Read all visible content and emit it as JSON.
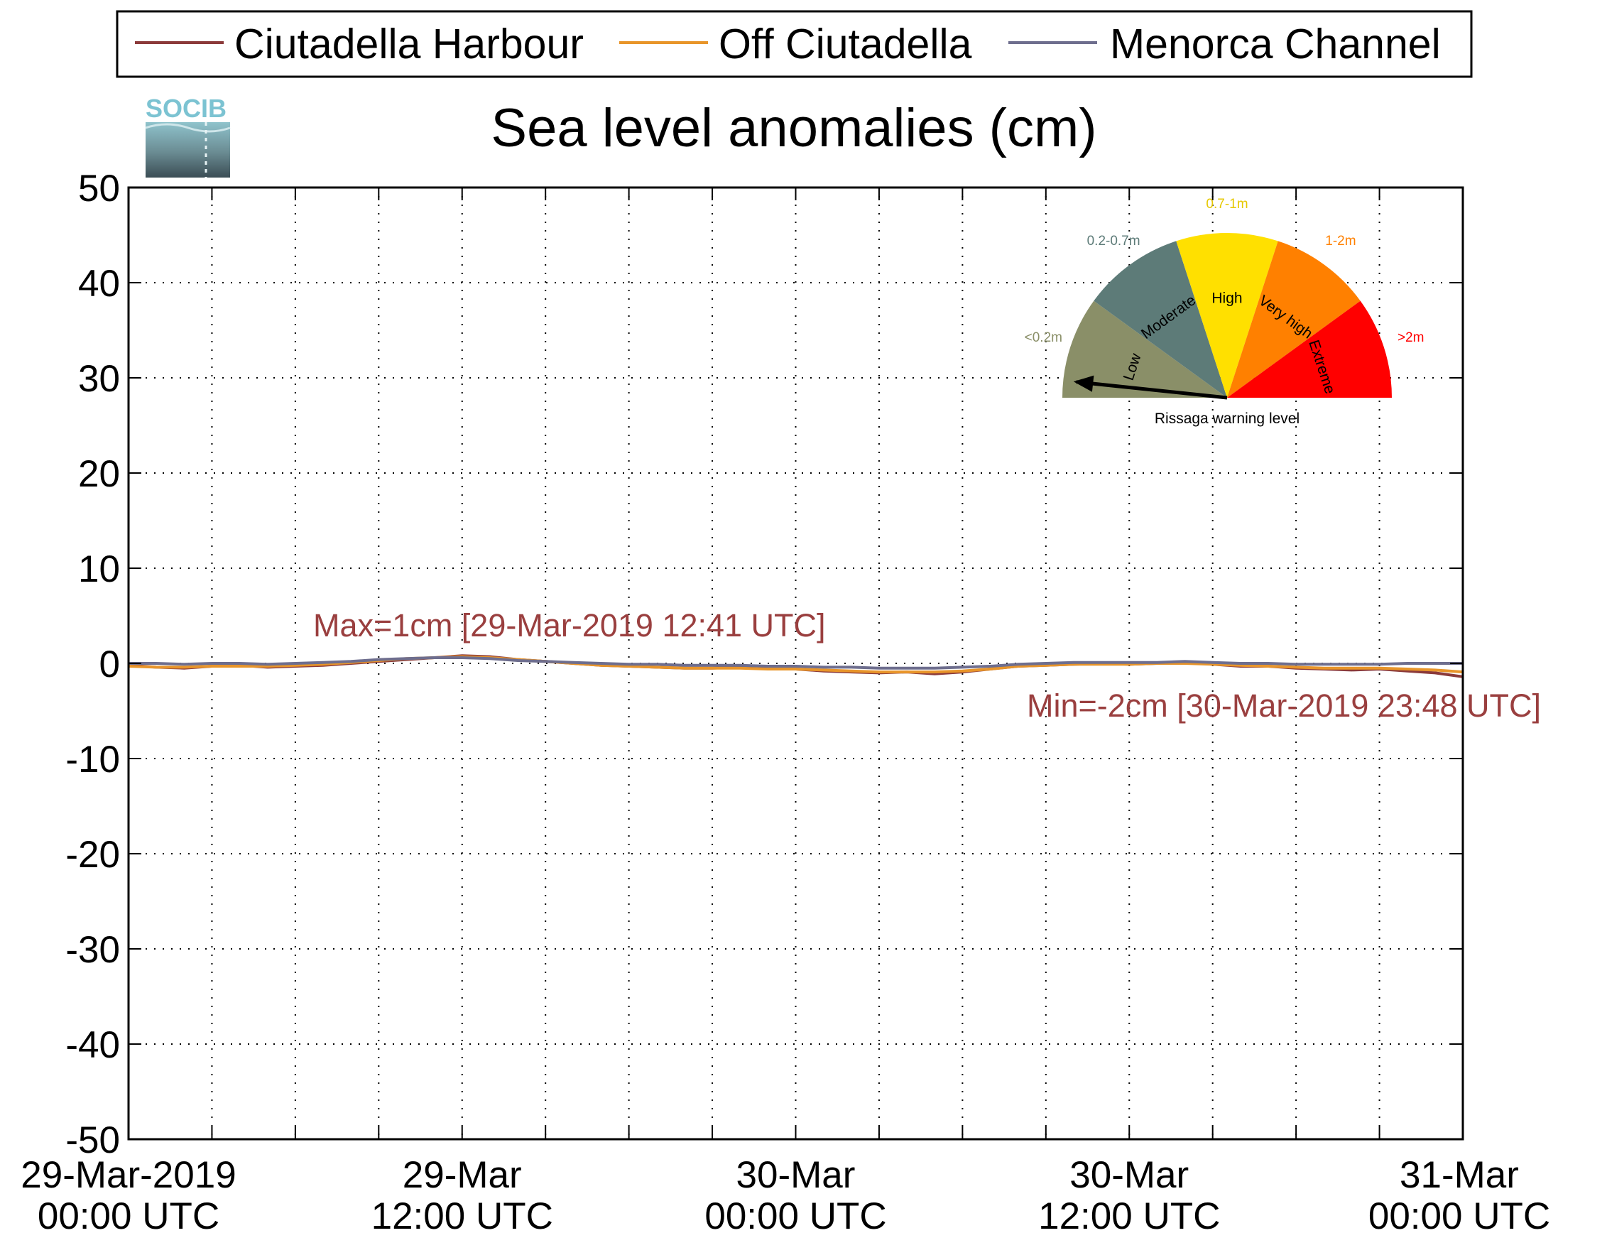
{
  "chart_data": {
    "type": "line",
    "title": "Sea level anomalies (cm)",
    "ylim": [
      -50,
      50
    ],
    "yticks": [
      50,
      40,
      30,
      20,
      10,
      0,
      -10,
      -20,
      -30,
      -40,
      -50
    ],
    "xlim_hours": [
      0,
      48
    ],
    "xticks": [
      {
        "line1": "29-Mar-2019",
        "line2": "00:00 UTC"
      },
      {
        "line1": "29-Mar",
        "line2": "12:00 UTC"
      },
      {
        "line1": "30-Mar",
        "line2": "00:00 UTC"
      },
      {
        "line1": "30-Mar",
        "line2": "12:00 UTC"
      },
      {
        "line1": "31-Mar",
        "line2": "00:00 UTC"
      }
    ],
    "grid": true,
    "legend_position": "top",
    "series": [
      {
        "name": "Ciutadella Harbour",
        "color": "#8b3a3a",
        "x": [
          0,
          1,
          2,
          3,
          4,
          5,
          6,
          7,
          8,
          9,
          10,
          11,
          12,
          13,
          14,
          15,
          16,
          17,
          18,
          19,
          20,
          21,
          22,
          23,
          24,
          25,
          26,
          27,
          28,
          29,
          30,
          31,
          32,
          33,
          34,
          35,
          36,
          37,
          38,
          39,
          40,
          41,
          42,
          43,
          44,
          45,
          46,
          47,
          48
        ],
        "y": [
          -0.2,
          -0.4,
          -0.5,
          -0.3,
          -0.2,
          -0.4,
          -0.3,
          -0.2,
          0.0,
          0.2,
          0.4,
          0.6,
          0.8,
          0.7,
          0.4,
          0.2,
          0.0,
          -0.2,
          -0.3,
          -0.4,
          -0.5,
          -0.5,
          -0.4,
          -0.5,
          -0.6,
          -0.8,
          -0.9,
          -1.0,
          -0.9,
          -1.1,
          -0.9,
          -0.6,
          -0.3,
          -0.2,
          -0.1,
          0.0,
          -0.1,
          0.0,
          0.1,
          -0.1,
          -0.3,
          -0.3,
          -0.5,
          -0.6,
          -0.7,
          -0.6,
          -0.8,
          -1.0,
          -1.4
        ]
      },
      {
        "name": "Off Ciutadella",
        "color": "#e8952a",
        "x": [
          0,
          1,
          2,
          3,
          4,
          5,
          6,
          7,
          8,
          9,
          10,
          11,
          12,
          13,
          14,
          15,
          16,
          17,
          18,
          19,
          20,
          21,
          22,
          23,
          24,
          25,
          26,
          27,
          28,
          29,
          30,
          31,
          32,
          33,
          34,
          35,
          36,
          37,
          38,
          39,
          40,
          41,
          42,
          43,
          44,
          45,
          46,
          47,
          48
        ],
        "y": [
          -0.3,
          -0.4,
          -0.4,
          -0.3,
          -0.3,
          -0.3,
          -0.2,
          -0.1,
          0.1,
          0.3,
          0.5,
          0.6,
          0.7,
          0.6,
          0.4,
          0.2,
          0.0,
          -0.2,
          -0.3,
          -0.4,
          -0.5,
          -0.5,
          -0.5,
          -0.6,
          -0.6,
          -0.7,
          -0.8,
          -0.9,
          -0.9,
          -0.9,
          -0.8,
          -0.6,
          -0.3,
          -0.2,
          -0.1,
          -0.1,
          -0.1,
          0.0,
          0.0,
          -0.1,
          -0.2,
          -0.3,
          -0.4,
          -0.5,
          -0.5,
          -0.5,
          -0.6,
          -0.7,
          -0.9
        ]
      },
      {
        "name": "Menorca Channel",
        "color": "#6e6e8e",
        "x": [
          0,
          1,
          2,
          3,
          4,
          5,
          6,
          7,
          8,
          9,
          10,
          11,
          12,
          13,
          14,
          15,
          16,
          17,
          18,
          19,
          20,
          21,
          22,
          23,
          24,
          25,
          26,
          27,
          28,
          29,
          30,
          31,
          32,
          33,
          34,
          35,
          36,
          37,
          38,
          39,
          40,
          41,
          42,
          43,
          44,
          45,
          46,
          47,
          48
        ],
        "y": [
          0.0,
          0.0,
          -0.1,
          0.0,
          0.0,
          -0.1,
          0.0,
          0.1,
          0.2,
          0.4,
          0.5,
          0.6,
          0.6,
          0.5,
          0.3,
          0.2,
          0.1,
          0.0,
          -0.1,
          -0.1,
          -0.2,
          -0.2,
          -0.2,
          -0.3,
          -0.3,
          -0.4,
          -0.4,
          -0.5,
          -0.5,
          -0.5,
          -0.4,
          -0.3,
          -0.1,
          0.0,
          0.1,
          0.1,
          0.1,
          0.1,
          0.2,
          0.1,
          0.0,
          0.0,
          -0.1,
          -0.1,
          -0.1,
          -0.1,
          0.0,
          0.0,
          0.0
        ]
      }
    ],
    "annotations": {
      "max": "Max=1cm [29-Mar-2019 12:41 UTC]",
      "min": "Min=-2cm [30-Mar-2019 23:48 UTC]"
    }
  },
  "logo": {
    "text": "SOCIB"
  },
  "gauge": {
    "caption": "Rissaga warning level",
    "needle_category": "Low",
    "segments": [
      {
        "name": "Low",
        "range": "<0.2m",
        "color": "#8a8f68"
      },
      {
        "name": "Moderate",
        "range": "0.2-0.7m",
        "color": "#5d7b78"
      },
      {
        "name": "High",
        "range": "0.7-1m",
        "color": "#ffe000"
      },
      {
        "name": "Very high",
        "range": "1-2m",
        "color": "#ff8000"
      },
      {
        "name": "Extreme",
        "range": ">2m",
        "color": "#ff0000"
      }
    ]
  }
}
